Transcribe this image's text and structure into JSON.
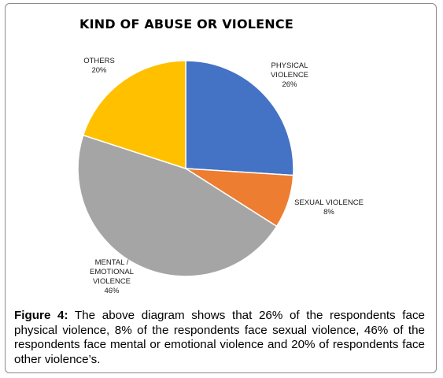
{
  "chart_data": {
    "type": "pie",
    "title": "KIND OF ABUSE OR VIOLENCE",
    "slices": [
      {
        "name": "PHYSICAL VIOLENCE",
        "label_lines": [
          "PHYSICAL",
          "VIOLENCE"
        ],
        "value": 26,
        "value_label": "26%",
        "color": "#4472C4"
      },
      {
        "name": "SEXUAL VIOLENCE",
        "label_lines": [
          "SEXUAL VIOLENCE"
        ],
        "value": 8,
        "value_label": "8%",
        "color": "#ED7D31"
      },
      {
        "name": "MENTAL / EMOTIONAL VIOLENCE",
        "label_lines": [
          "MENTAL /",
          "EMOTIONAL",
          "VIOLENCE"
        ],
        "value": 46,
        "value_label": "46%",
        "color": "#A5A5A5"
      },
      {
        "name": "OTHERS",
        "label_lines": [
          "OTHERS"
        ],
        "value": 20,
        "value_label": "20%",
        "color": "#FFC000"
      }
    ],
    "start_angle_deg": 0,
    "direction": "clockwise"
  },
  "caption": {
    "figure_label": "Figure 4:",
    "text": " The above diagram shows that 26% of the respondents face physical violence, 8% of the respondents face sexual violence, 46% of the respondents face mental or emotional violence and 20% of respondents face other violence’s."
  }
}
